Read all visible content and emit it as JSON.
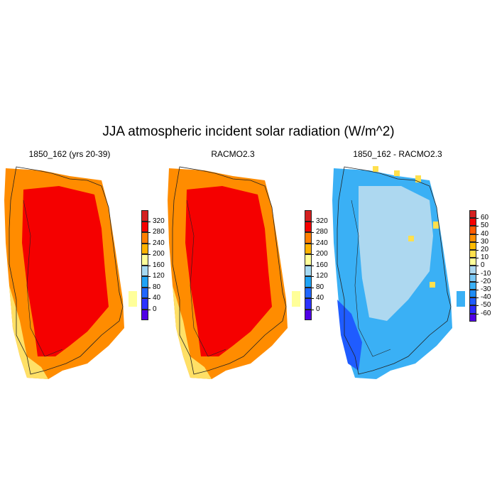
{
  "title": "JJA atmospheric incident solar radiation (W/m^2)",
  "panels": [
    {
      "id": "left",
      "title": "1850_162 (yrs 20-39)",
      "scheme": "absolute",
      "colorbar_labels": [
        "320",
        "280",
        "240",
        "200",
        "160",
        "120",
        "80",
        "40",
        "0"
      ]
    },
    {
      "id": "middle",
      "title": "RACMO2.3",
      "scheme": "absolute",
      "colorbar_labels": [
        "320",
        "280",
        "240",
        "200",
        "160",
        "120",
        "80",
        "40",
        "0"
      ]
    },
    {
      "id": "right",
      "title": "1850_162 - RACMO2.3",
      "scheme": "difference",
      "colorbar_labels": [
        "60",
        "50",
        "40",
        "30",
        "20",
        "10",
        "0",
        "-10",
        "-20",
        "-30",
        "-40",
        "-50",
        "-60"
      ]
    }
  ],
  "colors": {
    "absolute": [
      "#d42020",
      "#f50000",
      "#ff7f00",
      "#ffb200",
      "#ffff99",
      "#a6d9f2",
      "#1fa3f5",
      "#1f66ff",
      "#2b33ff",
      "#5000e6"
    ],
    "difference": [
      "#d42020",
      "#f50000",
      "#ff5a00",
      "#ff8f00",
      "#ffbb00",
      "#ffe04d",
      "#ffff99",
      "#add8f0",
      "#7ac8f5",
      "#3ab0f5",
      "#1f8cf5",
      "#1f5cff",
      "#2b2bff",
      "#5000e6"
    ]
  }
}
